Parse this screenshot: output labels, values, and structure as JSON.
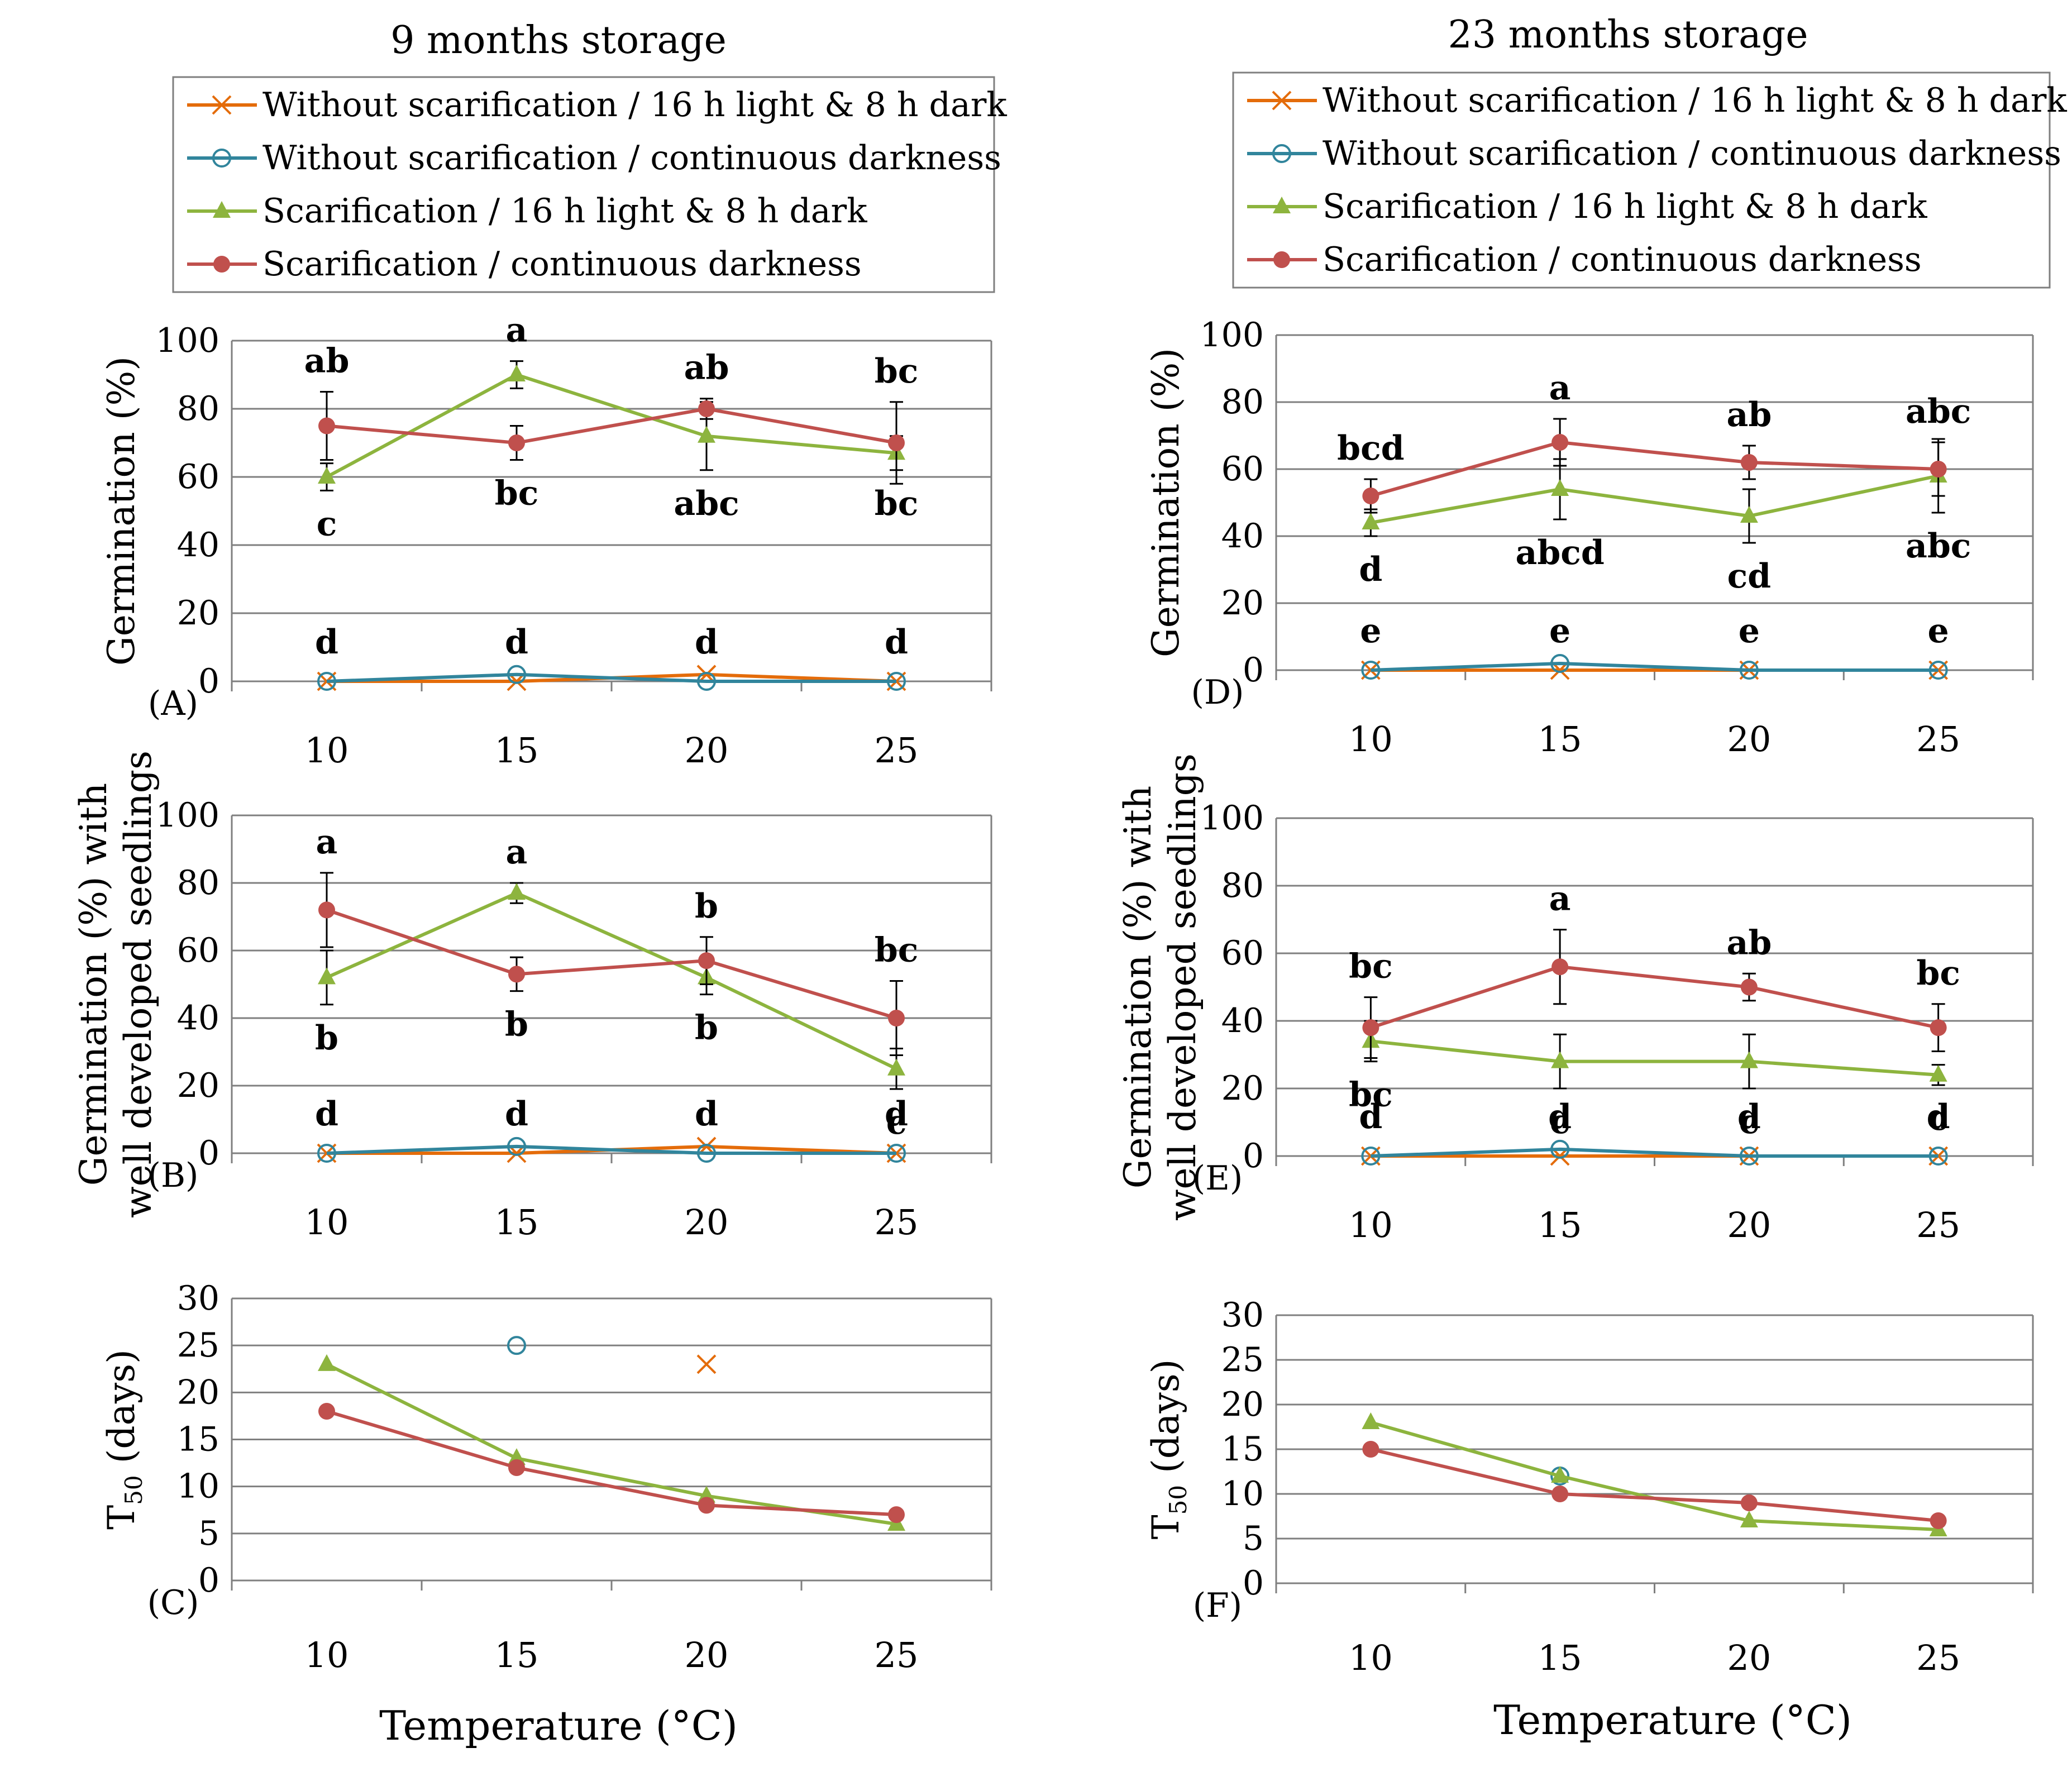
{
  "colors": {
    "orange": "#E46C0A",
    "blue": "#31859C",
    "green": "#8DB43E",
    "red": "#C0504D",
    "grid": "#7F7F7F",
    "text": "#000000"
  },
  "column_titles": [
    "9 months storage",
    "23 months storage"
  ],
  "legend": [
    {
      "label": "Without scarification / 16 h light & 8 h dark",
      "color": "#E46C0A",
      "marker": "x"
    },
    {
      "label": "Without scarification / continuous darkness",
      "color": "#31859C",
      "marker": "circle-open"
    },
    {
      "label": "Scarification / 16 h light & 8 h dark",
      "color": "#8DB43E",
      "marker": "triangle"
    },
    {
      "label": "Scarification / continuous darkness",
      "color": "#C0504D",
      "marker": "circle"
    }
  ],
  "xlabel": "Temperature (°C)",
  "chart_data": [
    {
      "panel": "(A)",
      "type": "line",
      "title": "9 months storage",
      "categories": [
        "10",
        "15",
        "20",
        "25"
      ],
      "ylabel": "Germination (%)",
      "ylim": [
        0,
        100
      ],
      "yticks": [
        "0",
        "20",
        "40",
        "60",
        "80",
        "100"
      ],
      "series": [
        {
          "name": "Without scarification / 16 h light & 8 h dark",
          "values": [
            0,
            0,
            2,
            0
          ],
          "errors": [
            0,
            0,
            0,
            0
          ],
          "labels": [
            "",
            "",
            "",
            ""
          ]
        },
        {
          "name": "Without scarification / continuous darkness",
          "values": [
            0,
            2,
            0,
            0
          ],
          "errors": [
            0,
            0,
            0,
            0
          ],
          "labels": [
            "",
            "",
            "",
            ""
          ]
        },
        {
          "name": "Scarification / 16 h light & 8 h dark",
          "values": [
            60,
            90,
            72,
            67
          ],
          "errors": [
            4,
            4,
            10,
            5
          ],
          "labels": [
            "c",
            "a",
            "abc",
            "bc"
          ]
        },
        {
          "name": "Scarification / continuous darkness",
          "values": [
            75,
            70,
            80,
            70
          ],
          "errors": [
            10,
            5,
            3,
            12
          ],
          "labels": [
            "ab",
            "bc",
            "ab",
            "bc"
          ]
        }
      ],
      "zero_labels": [
        "d",
        "d",
        "d",
        "d"
      ]
    },
    {
      "panel": "(B)",
      "type": "line",
      "title": "",
      "categories": [
        "10",
        "15",
        "20",
        "25"
      ],
      "ylabel": "Germination (%) with well developed seedlings",
      "ylim": [
        0,
        100
      ],
      "yticks": [
        "0",
        "20",
        "40",
        "60",
        "80",
        "100"
      ],
      "series": [
        {
          "name": "Without scarification / 16 h light & 8 h dark",
          "values": [
            0,
            0,
            2,
            0
          ],
          "errors": [
            0,
            0,
            0,
            0
          ],
          "labels": [
            "",
            "",
            "",
            ""
          ]
        },
        {
          "name": "Without scarification / continuous darkness",
          "values": [
            0,
            2,
            0,
            0
          ],
          "errors": [
            0,
            0,
            0,
            0
          ],
          "labels": [
            "",
            "",
            "",
            ""
          ]
        },
        {
          "name": "Scarification / 16 h light & 8 h dark",
          "values": [
            52,
            77,
            52,
            25
          ],
          "errors": [
            8,
            3,
            5,
            6
          ],
          "labels": [
            "b",
            "a",
            "b",
            "c"
          ]
        },
        {
          "name": "Scarification / continuous darkness",
          "values": [
            72,
            53,
            57,
            40
          ],
          "errors": [
            11,
            5,
            7,
            11
          ],
          "labels": [
            "a",
            "b",
            "b",
            "bc"
          ]
        }
      ],
      "zero_labels": [
        "d",
        "d",
        "d",
        "d"
      ]
    },
    {
      "panel": "(C)",
      "type": "line",
      "title": "",
      "categories": [
        "10",
        "15",
        "20",
        "25"
      ],
      "ylabel": "T50 (days)",
      "ylim": [
        0,
        30
      ],
      "yticks": [
        "0",
        "5",
        "10",
        "15",
        "20",
        "25",
        "30"
      ],
      "series": [
        {
          "name": "Without scarification / 16 h light & 8 h dark",
          "values": [
            null,
            null,
            23,
            null
          ]
        },
        {
          "name": "Without scarification / continuous darkness",
          "values": [
            null,
            25,
            null,
            null
          ]
        },
        {
          "name": "Scarification / 16 h light & 8 h dark",
          "values": [
            23,
            13,
            9,
            6
          ]
        },
        {
          "name": "Scarification / continuous darkness",
          "values": [
            18,
            12,
            8,
            7
          ]
        }
      ]
    },
    {
      "panel": "(D)",
      "type": "line",
      "title": "23 months storage",
      "categories": [
        "10",
        "15",
        "20",
        "25"
      ],
      "ylabel": "Germination (%)",
      "ylim": [
        0,
        100
      ],
      "yticks": [
        "0",
        "20",
        "40",
        "60",
        "80",
        "100"
      ],
      "series": [
        {
          "name": "Without scarification / 16 h light & 8 h dark",
          "values": [
            0,
            0,
            0,
            0
          ],
          "errors": [
            0,
            0,
            0,
            0
          ],
          "labels": [
            "",
            "",
            "",
            ""
          ]
        },
        {
          "name": "Without scarification / continuous darkness",
          "values": [
            0,
            2,
            0,
            0
          ],
          "errors": [
            0,
            0,
            0,
            0
          ],
          "labels": [
            "",
            "",
            "",
            ""
          ]
        },
        {
          "name": "Scarification / 16 h light & 8 h dark",
          "values": [
            44,
            54,
            46,
            58
          ],
          "errors": [
            4,
            9,
            8,
            11
          ],
          "labels": [
            "d",
            "abcd",
            "cd",
            "abc"
          ]
        },
        {
          "name": "Scarification / continuous darkness",
          "values": [
            52,
            68,
            62,
            60
          ],
          "errors": [
            5,
            7,
            5,
            8
          ],
          "labels": [
            "bcd",
            "a",
            "ab",
            "abc"
          ]
        }
      ],
      "zero_labels": [
        "e",
        "e",
        "e",
        "e"
      ]
    },
    {
      "panel": "(E)",
      "type": "line",
      "title": "",
      "categories": [
        "10",
        "15",
        "20",
        "25"
      ],
      "ylabel": "Germination (%) with well developed seedlings",
      "ylim": [
        0,
        100
      ],
      "yticks": [
        "0",
        "20",
        "40",
        "60",
        "80",
        "100"
      ],
      "series": [
        {
          "name": "Without scarification / 16 h light & 8 h dark",
          "values": [
            0,
            0,
            0,
            0
          ],
          "errors": [
            0,
            0,
            0,
            0
          ],
          "labels": [
            "",
            "",
            "",
            ""
          ]
        },
        {
          "name": "Without scarification / continuous darkness",
          "values": [
            0,
            2,
            0,
            0
          ],
          "errors": [
            0,
            0,
            0,
            0
          ],
          "labels": [
            "",
            "",
            "",
            ""
          ]
        },
        {
          "name": "Scarification / 16 h light & 8 h dark",
          "values": [
            34,
            28,
            28,
            24
          ],
          "errors": [
            6,
            8,
            8,
            3
          ],
          "labels": [
            "bc",
            "c",
            "c",
            "c"
          ]
        },
        {
          "name": "Scarification / continuous darkness",
          "values": [
            38,
            56,
            50,
            38
          ],
          "errors": [
            9,
            11,
            4,
            7
          ],
          "labels": [
            "bc",
            "a",
            "ab",
            "bc"
          ]
        }
      ],
      "zero_labels": [
        "d",
        "d",
        "d",
        "d"
      ]
    },
    {
      "panel": "(F)",
      "type": "line",
      "title": "",
      "categories": [
        "10",
        "15",
        "20",
        "25"
      ],
      "ylabel": "T50 (days)",
      "ylim": [
        0,
        30
      ],
      "yticks": [
        "0",
        "5",
        "10",
        "15",
        "20",
        "25",
        "30"
      ],
      "series": [
        {
          "name": "Without scarification / 16 h light & 8 h dark",
          "values": [
            null,
            null,
            null,
            null
          ]
        },
        {
          "name": "Without scarification / continuous darkness",
          "values": [
            null,
            12,
            null,
            null
          ]
        },
        {
          "name": "Scarification / 16 h light & 8 h dark",
          "values": [
            18,
            12,
            7,
            6
          ]
        },
        {
          "name": "Scarification / continuous darkness",
          "values": [
            15,
            10,
            9,
            7
          ]
        }
      ]
    }
  ]
}
